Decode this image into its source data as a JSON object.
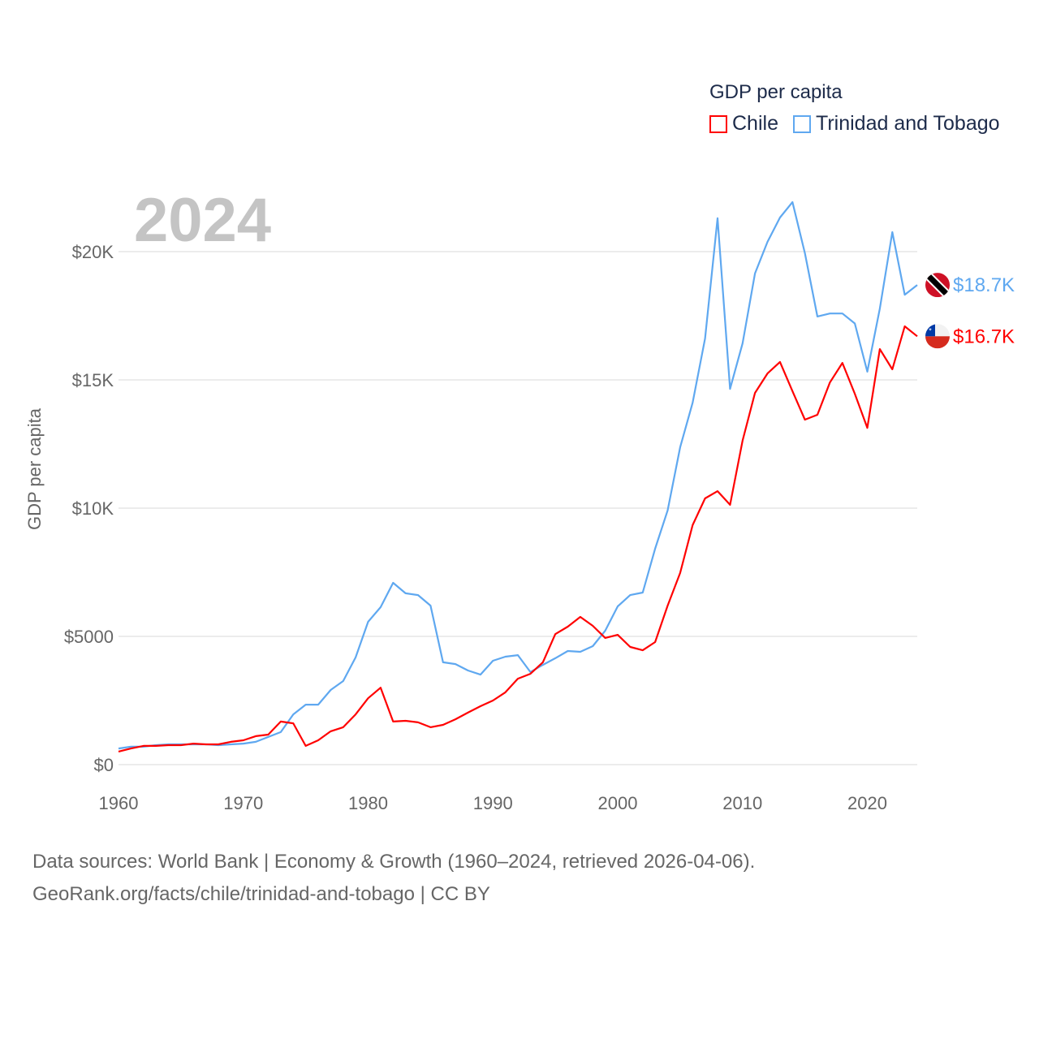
{
  "legend": {
    "title": "GDP per capita",
    "items": [
      {
        "label": "Chile",
        "color": "#ff0000"
      },
      {
        "label": "Trinidad and Tobago",
        "color": "#5fa8f0"
      }
    ]
  },
  "year_label": "2024",
  "footer": {
    "line1": "Data sources: World Bank | Economy & Growth (1960–2024, retrieved 2026-04-06).",
    "line2": "GeoRank.org/facts/chile/trinidad-and-tobago | CC BY"
  },
  "chart_data": {
    "type": "line",
    "title": "GDP per capita",
    "xlabel": "",
    "ylabel": "GDP per capita",
    "xlim": [
      1960,
      2024
    ],
    "ylim": [
      0,
      22000
    ],
    "x_ticks": [
      1960,
      1970,
      1980,
      1990,
      2000,
      2010,
      2020
    ],
    "x_tick_labels": [
      "1960",
      "1970",
      "1980",
      "1990",
      "2000",
      "2010",
      "2020"
    ],
    "y_ticks": [
      0,
      5000,
      10000,
      15000,
      20000
    ],
    "y_tick_labels": [
      "$0",
      "$5000",
      "$10K",
      "$15K",
      "$20K"
    ],
    "grid": true,
    "legend_position": "top-right",
    "x": [
      1960,
      1961,
      1962,
      1963,
      1964,
      1965,
      1966,
      1967,
      1968,
      1969,
      1970,
      1971,
      1972,
      1973,
      1974,
      1975,
      1976,
      1977,
      1978,
      1979,
      1980,
      1981,
      1982,
      1983,
      1984,
      1985,
      1986,
      1987,
      1988,
      1989,
      1990,
      1991,
      1992,
      1993,
      1994,
      1995,
      1996,
      1997,
      1998,
      1999,
      2000,
      2001,
      2002,
      2003,
      2004,
      2005,
      2006,
      2007,
      2008,
      2009,
      2010,
      2011,
      2012,
      2013,
      2014,
      2015,
      2016,
      2017,
      2018,
      2019,
      2020,
      2021,
      2022,
      2023,
      2024
    ],
    "series": [
      {
        "name": "Chile",
        "color": "#ff0000",
        "end_label": "$16.7K",
        "flag": "chile-flag",
        "values": [
          510,
          630,
          730,
          730,
          760,
          760,
          820,
          790,
          790,
          890,
          950,
          1110,
          1170,
          1680,
          1610,
          730,
          950,
          1300,
          1460,
          1960,
          2590,
          3000,
          1680,
          1710,
          1650,
          1460,
          1550,
          1770,
          2030,
          2280,
          2500,
          2820,
          3350,
          3540,
          3990,
          5090,
          5380,
          5760,
          5410,
          4940,
          5060,
          4590,
          4460,
          4780,
          6200,
          7470,
          9340,
          10380,
          10660,
          10130,
          12630,
          14490,
          15250,
          15700,
          14560,
          13450,
          13640,
          14900,
          15660,
          14460,
          13130,
          16200,
          15410,
          17090,
          16700
        ]
      },
      {
        "name": "Trinidad and Tobago",
        "color": "#5fa8f0",
        "end_label": "$18.7K",
        "flag": "trinidad-flag",
        "values": [
          630,
          700,
          700,
          760,
          790,
          790,
          790,
          790,
          760,
          790,
          820,
          890,
          1080,
          1270,
          1960,
          2340,
          2340,
          2910,
          3260,
          4180,
          5570,
          6140,
          7090,
          6680,
          6610,
          6200,
          3990,
          3920,
          3670,
          3510,
          4050,
          4210,
          4270,
          3610,
          3890,
          4150,
          4430,
          4400,
          4620,
          5220,
          6170,
          6610,
          6710,
          8420,
          9910,
          12370,
          14110,
          16610,
          21300,
          14650,
          16420,
          19150,
          20380,
          21330,
          21930,
          19940,
          17470,
          17590,
          17590,
          17200,
          15320,
          17780,
          20760,
          18320,
          18700
        ]
      }
    ]
  }
}
